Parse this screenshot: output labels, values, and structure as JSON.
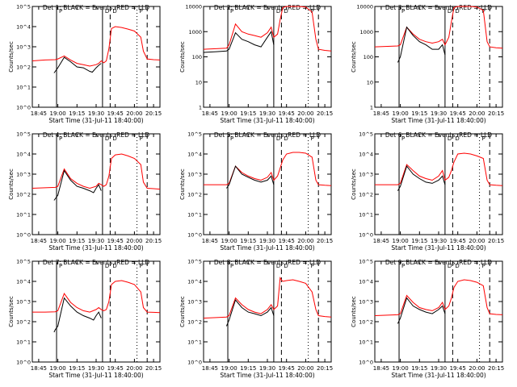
{
  "chart_data": {
    "type": "line",
    "x_tick_labels": [
      "18:45",
      "19:00",
      "19:15",
      "19:30",
      "19:45",
      "20:00",
      "20:15"
    ],
    "x_range": [
      "18:40",
      "20:20"
    ],
    "xlabel": "Start Time (31-Jul-11 18:40:00)",
    "ylabel": "Counts/sec",
    "yscale": "log",
    "vertical_lines": {
      "solid": [
        "18:59",
        "19:35"
      ],
      "dashed": [
        "19:41",
        "20:10"
      ],
      "dotted": [
        "20:02"
      ]
    },
    "markers_top": [
      "P",
      "D",
      "D",
      "P"
    ],
    "series_colors": {
      "events": "#000000",
      "lld": "#ff0000"
    },
    "panels": [
      {
        "title": "Det 1: BLACK = Events, RED = LLD",
        "y_tick_labels": [
          "10^0",
          "10^1",
          "10^2",
          "10^3",
          "10^4",
          "10^5"
        ],
        "ylim": [
          1,
          100000
        ],
        "series": [
          {
            "color": "black",
            "x": [
              "18:57",
              "18:58",
              "19:00",
              "19:05",
              "19:10",
              "19:15",
              "19:20",
              "19:25",
              "19:27",
              "19:30",
              "19:32",
              "19:34"
            ],
            "y": [
              50,
              60,
              90,
              300,
              180,
              100,
              90,
              60,
              55,
              90,
              120,
              150
            ]
          },
          {
            "color": "red",
            "x": [
              "18:40",
              "18:50",
              "18:58",
              "19:00",
              "19:05",
              "19:10",
              "19:15",
              "19:20",
              "19:25",
              "19:30",
              "19:32",
              "19:34",
              "19:36",
              "19:38",
              "19:40",
              "19:42",
              "19:45",
              "19:50",
              "19:55",
              "20:00",
              "20:05",
              "20:07",
              "20:10",
              "20:15",
              "20:20"
            ],
            "y": [
              200,
              220,
              230,
              250,
              350,
              220,
              150,
              130,
              110,
              130,
              150,
              200,
              160,
              200,
              800,
              8000,
              10000,
              9000,
              7500,
              6000,
              3000,
              600,
              250,
              230,
              220
            ]
          }
        ]
      },
      {
        "title": "Det 2: BLACK = Events, RED = LLD",
        "y_tick_labels": [
          "1",
          "10",
          "100",
          "1000",
          "10000"
        ],
        "ylim": [
          1,
          10000
        ],
        "series": [
          {
            "color": "black",
            "x": [
              "18:40",
              "18:50",
              "18:58",
              "19:00",
              "19:05",
              "19:10",
              "19:15",
              "19:20",
              "19:25",
              "19:30",
              "19:33",
              "19:35"
            ],
            "y": [
              150,
              160,
              170,
              200,
              900,
              500,
              400,
              300,
              250,
              600,
              1000,
              300
            ]
          },
          {
            "color": "red",
            "x": [
              "18:40",
              "18:50",
              "18:58",
              "19:00",
              "19:05",
              "19:10",
              "19:15",
              "19:20",
              "19:25",
              "19:30",
              "19:33",
              "19:35",
              "19:38",
              "19:40",
              "19:42",
              "19:45",
              "19:50",
              "19:55",
              "20:00",
              "20:05",
              "20:08",
              "20:10",
              "20:15",
              "20:20"
            ],
            "y": [
              200,
              210,
              220,
              300,
              2000,
              1000,
              800,
              700,
              600,
              900,
              1500,
              600,
              800,
              3000,
              9000,
              10000,
              10000,
              10000,
              9500,
              6000,
              500,
              200,
              180,
              170
            ]
          }
        ]
      },
      {
        "title": "Det 3: BLACK = Events, RED = LLD",
        "y_tick_labels": [
          "1",
          "10",
          "100",
          "1000",
          "10000"
        ],
        "ylim": [
          1,
          10000
        ],
        "series": [
          {
            "color": "black",
            "x": [
              "18:58",
              "19:00",
              "19:05",
              "19:10",
              "19:15",
              "19:20",
              "19:25",
              "19:30",
              "19:33",
              "19:35"
            ],
            "y": [
              60,
              100,
              1500,
              700,
              400,
              300,
              200,
              200,
              300,
              120
            ]
          },
          {
            "color": "red",
            "x": [
              "18:40",
              "18:50",
              "18:58",
              "19:00",
              "19:05",
              "19:10",
              "19:15",
              "19:20",
              "19:25",
              "19:30",
              "19:33",
              "19:35",
              "19:38",
              "19:40",
              "19:42",
              "19:45",
              "19:50",
              "19:55",
              "20:00",
              "20:05",
              "20:08",
              "20:10",
              "20:15",
              "20:20"
            ],
            "y": [
              250,
              260,
              270,
              300,
              1500,
              800,
              500,
              400,
              350,
              400,
              500,
              300,
              600,
              2500,
              9000,
              10000,
              10000,
              10000,
              9500,
              7000,
              400,
              250,
              230,
              220
            ]
          }
        ]
      },
      {
        "title": "Det 4: BLACK = Events, RED = LLD",
        "y_tick_labels": [
          "10^0",
          "10^1",
          "10^2",
          "10^3",
          "10^4",
          "10^5"
        ],
        "ylim": [
          1,
          100000
        ],
        "series": [
          {
            "color": "black",
            "x": [
              "18:57",
              "18:58",
              "19:00",
              "19:05",
              "19:10",
              "19:15",
              "19:20",
              "19:25",
              "19:28",
              "19:30",
              "19:32",
              "19:34"
            ],
            "y": [
              50,
              60,
              90,
              1500,
              500,
              250,
              200,
              150,
              120,
              200,
              300,
              150
            ]
          },
          {
            "color": "red",
            "x": [
              "18:40",
              "18:50",
              "18:58",
              "19:00",
              "19:05",
              "19:10",
              "19:15",
              "19:20",
              "19:25",
              "19:30",
              "19:32",
              "19:34",
              "19:36",
              "19:38",
              "19:40",
              "19:42",
              "19:45",
              "19:50",
              "19:55",
              "20:00",
              "20:05",
              "20:07",
              "20:10",
              "20:15",
              "20:20"
            ],
            "y": [
              200,
              210,
              220,
              250,
              1800,
              600,
              350,
              250,
              200,
              250,
              350,
              300,
              250,
              300,
              800,
              6000,
              9000,
              10000,
              8000,
              6000,
              3000,
              400,
              200,
              190,
              180
            ]
          }
        ]
      },
      {
        "title": "Det 5: BLACK = Events, RED = LLD",
        "y_tick_labels": [
          "10^0",
          "10^1",
          "10^2",
          "10^3",
          "10^4",
          "10^5"
        ],
        "ylim": [
          1,
          100000
        ],
        "series": [
          {
            "color": "black",
            "x": [
              "18:58",
              "19:00",
              "19:05",
              "19:10",
              "19:15",
              "19:20",
              "19:25",
              "19:30",
              "19:33",
              "19:35"
            ],
            "y": [
              200,
              300,
              2500,
              1000,
              700,
              500,
              400,
              500,
              800,
              300
            ]
          },
          {
            "color": "red",
            "x": [
              "18:40",
              "18:50",
              "18:58",
              "19:00",
              "19:05",
              "19:10",
              "19:15",
              "19:20",
              "19:25",
              "19:30",
              "19:33",
              "19:35",
              "19:38",
              "19:40",
              "19:42",
              "19:45",
              "19:50",
              "19:55",
              "20:00",
              "20:05",
              "20:08",
              "20:10",
              "20:15",
              "20:20"
            ],
            "y": [
              300,
              300,
              300,
              350,
              2500,
              1200,
              800,
              600,
              500,
              700,
              1200,
              500,
              800,
              2000,
              5000,
              10000,
              12000,
              12000,
              11000,
              7000,
              500,
              300,
              280,
              270
            ]
          }
        ]
      },
      {
        "title": "Det 6: BLACK = Events, RED = LLD",
        "y_tick_labels": [
          "10^0",
          "10^1",
          "10^2",
          "10^3",
          "10^4",
          "10^5"
        ],
        "ylim": [
          1,
          100000
        ],
        "series": [
          {
            "color": "black",
            "x": [
              "18:58",
              "19:00",
              "19:05",
              "19:10",
              "19:15",
              "19:20",
              "19:25",
              "19:30",
              "19:33",
              "19:35"
            ],
            "y": [
              150,
              250,
              2500,
              1000,
              600,
              400,
              350,
              500,
              800,
              300
            ]
          },
          {
            "color": "red",
            "x": [
              "18:40",
              "18:50",
              "18:58",
              "19:00",
              "19:05",
              "19:10",
              "19:15",
              "19:20",
              "19:25",
              "19:30",
              "19:33",
              "19:35",
              "19:38",
              "19:40",
              "19:42",
              "19:45",
              "19:50",
              "19:55",
              "20:00",
              "20:05",
              "20:08",
              "20:10",
              "20:15",
              "20:20"
            ],
            "y": [
              300,
              300,
              300,
              350,
              3000,
              1500,
              800,
              600,
              500,
              800,
              1500,
              500,
              700,
              1500,
              4000,
              10000,
              11000,
              10000,
              8000,
              6000,
              500,
              300,
              280,
              270
            ]
          }
        ]
      },
      {
        "title": "Det 7: BLACK = Events, RED = LLD",
        "y_tick_labels": [
          "10^0",
          "10^1",
          "10^2",
          "10^3",
          "10^4",
          "10^5"
        ],
        "ylim": [
          1,
          100000
        ],
        "series": [
          {
            "color": "black",
            "x": [
              "18:57",
              "18:58",
              "19:00",
              "19:05",
              "19:10",
              "19:15",
              "19:20",
              "19:25",
              "19:28",
              "19:30",
              "19:32",
              "19:34"
            ],
            "y": [
              30,
              40,
              60,
              1500,
              600,
              300,
              200,
              150,
              120,
              200,
              300,
              150
            ]
          },
          {
            "color": "red",
            "x": [
              "18:40",
              "18:50",
              "18:58",
              "19:00",
              "19:05",
              "19:10",
              "19:15",
              "19:20",
              "19:25",
              "19:30",
              "19:32",
              "19:34",
              "19:36",
              "19:38",
              "19:40",
              "19:42",
              "19:45",
              "19:50",
              "19:55",
              "20:00",
              "20:05",
              "20:07",
              "20:10",
              "20:15",
              "20:20"
            ],
            "y": [
              300,
              300,
              310,
              350,
              2500,
              900,
              500,
              350,
              300,
              400,
              500,
              400,
              350,
              400,
              1000,
              7000,
              10000,
              11000,
              9000,
              7000,
              3000,
              500,
              300,
              290,
              280
            ]
          }
        ]
      },
      {
        "title": "Det 8: BLACK = Events, RED = LLD",
        "y_tick_labels": [
          "10^0",
          "10^1",
          "10^2",
          "10^3",
          "10^4",
          "10^5"
        ],
        "ylim": [
          1,
          100000
        ],
        "series": [
          {
            "color": "black",
            "x": [
              "18:58",
              "19:00",
              "19:05",
              "19:10",
              "19:15",
              "19:20",
              "19:25",
              "19:30",
              "19:33",
              "19:35"
            ],
            "y": [
              60,
              120,
              1200,
              500,
              300,
              250,
              200,
              300,
              500,
              200
            ]
          },
          {
            "color": "red",
            "x": [
              "18:40",
              "18:50",
              "18:58",
              "19:00",
              "19:05",
              "19:10",
              "19:15",
              "19:20",
              "19:25",
              "19:30",
              "19:33",
              "19:35",
              "19:38",
              "19:40",
              "19:41",
              "19:42",
              "19:45",
              "19:50",
              "19:55",
              "20:00",
              "20:05",
              "20:08",
              "20:10",
              "20:15",
              "20:20"
            ],
            "y": [
              150,
              160,
              170,
              200,
              1500,
              700,
              400,
              300,
              250,
              400,
              700,
              400,
              600,
              15000,
              12000,
              10000,
              11000,
              12000,
              10000,
              8000,
              3000,
              400,
              200,
              180,
              170
            ]
          }
        ]
      },
      {
        "title": "Det 9: BLACK = Events, RED = LLD",
        "y_tick_labels": [
          "10^0",
          "10^1",
          "10^2",
          "10^3",
          "10^4",
          "10^5"
        ],
        "ylim": [
          1,
          100000
        ],
        "series": [
          {
            "color": "black",
            "x": [
              "18:58",
              "19:00",
              "19:05",
              "19:10",
              "19:15",
              "19:20",
              "19:25",
              "19:30",
              "19:33",
              "19:35"
            ],
            "y": [
              80,
              150,
              1500,
              600,
              400,
              300,
              250,
              400,
              600,
              250
            ]
          },
          {
            "color": "red",
            "x": [
              "18:40",
              "18:50",
              "18:58",
              "19:00",
              "19:05",
              "19:10",
              "19:15",
              "19:20",
              "19:25",
              "19:30",
              "19:33",
              "19:35",
              "19:38",
              "19:40",
              "19:42",
              "19:45",
              "19:50",
              "19:55",
              "20:00",
              "20:05",
              "20:08",
              "20:10",
              "20:15",
              "20:20"
            ],
            "y": [
              200,
              210,
              220,
              250,
              2000,
              900,
              500,
              400,
              350,
              500,
              900,
              400,
              600,
              1500,
              5000,
              10000,
              12000,
              11000,
              9000,
              6000,
              500,
              250,
              230,
              220
            ]
          }
        ]
      }
    ]
  }
}
